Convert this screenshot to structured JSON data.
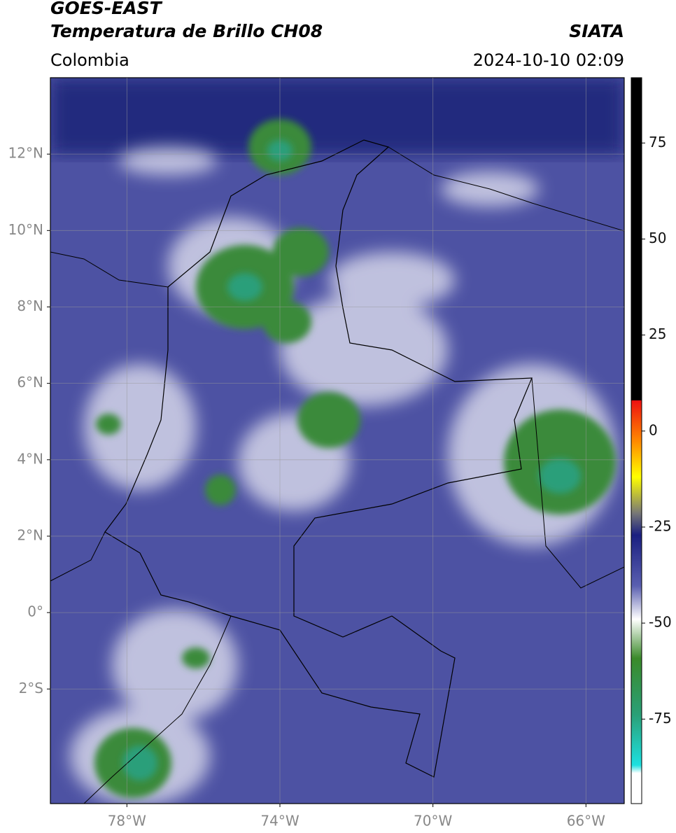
{
  "header": {
    "title": "GOES-EAST",
    "subtitle": "Temperatura de Brillo CH08",
    "source": "SIATA",
    "region": "Colombia",
    "datetime": "2024-10-10 02:09"
  },
  "map": {
    "lonlim": [
      -80,
      -65
    ],
    "latlim": [
      -5,
      14
    ],
    "grid": true,
    "lonticks": [
      {
        "value": -78,
        "label": "78°W"
      },
      {
        "value": -74,
        "label": "74°W"
      },
      {
        "value": -70,
        "label": "70°W"
      },
      {
        "value": -66,
        "label": "66°W"
      }
    ],
    "latticks": [
      {
        "value": 12,
        "label": "12°N"
      },
      {
        "value": 10,
        "label": "10°N"
      },
      {
        "value": 8,
        "label": "8°N"
      },
      {
        "value": 6,
        "label": "6°N"
      },
      {
        "value": 4,
        "label": "4°N"
      },
      {
        "value": 2,
        "label": "2°N"
      },
      {
        "value": 0,
        "label": "0°"
      },
      {
        "value": -2,
        "label": "2°S"
      }
    ]
  },
  "colorbar": {
    "lim": [
      -97,
      92
    ],
    "ticks": [
      -75,
      -50,
      -25,
      0,
      25,
      50,
      75
    ]
  }
}
